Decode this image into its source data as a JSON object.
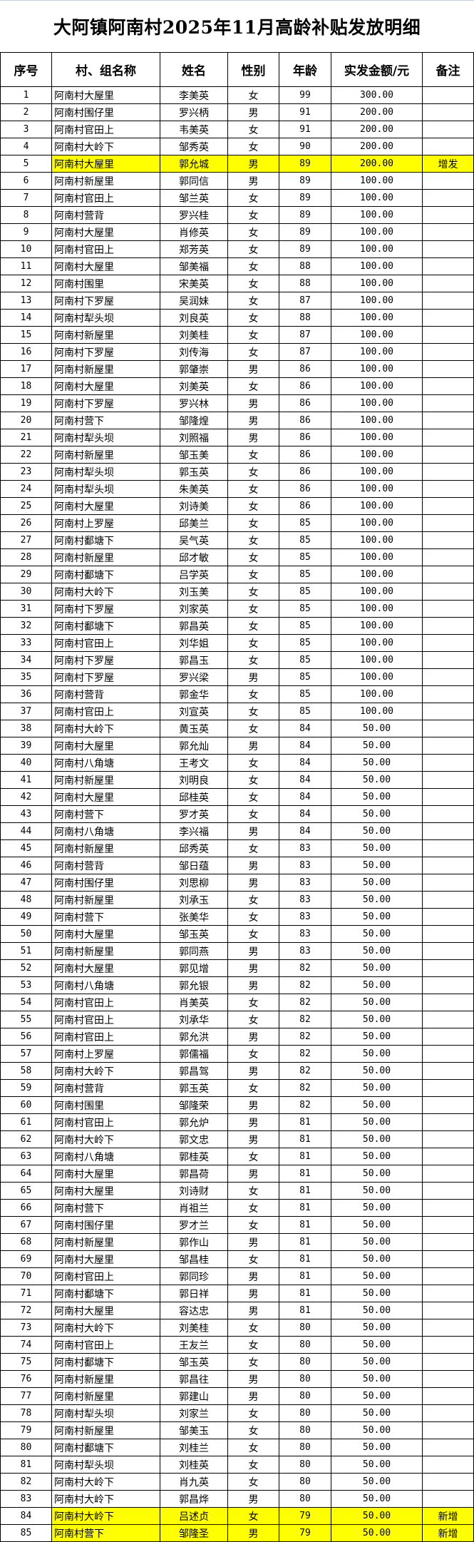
{
  "title": "大阿镇阿南村2025年11月高龄补贴发放明细",
  "highlight_color": "#ffff00",
  "columns": [
    "序号",
    "村、组名称",
    "姓名",
    "性别",
    "年龄",
    "实发金额/元",
    "备注"
  ],
  "rows": [
    [
      "1",
      "阿南村大屋里",
      "李美英",
      "女",
      "99",
      "300.00",
      ""
    ],
    [
      "2",
      "阿南村围仔里",
      "罗兴柄",
      "男",
      "91",
      "200.00",
      ""
    ],
    [
      "3",
      "阿南村官田上",
      "韦美英",
      "女",
      "91",
      "200.00",
      ""
    ],
    [
      "4",
      "阿南村大岭下",
      "邹秀英",
      "女",
      "90",
      "200.00",
      ""
    ],
    [
      "5",
      "阿南村大屋里",
      "郭允城",
      "男",
      "89",
      "200.00",
      "增发"
    ],
    [
      "6",
      "阿南村新屋里",
      "郭同信",
      "男",
      "89",
      "100.00",
      ""
    ],
    [
      "7",
      "阿南村官田上",
      "邹兰英",
      "女",
      "89",
      "100.00",
      ""
    ],
    [
      "8",
      "阿南村营背",
      "罗兴桂",
      "女",
      "89",
      "100.00",
      ""
    ],
    [
      "9",
      "阿南村大屋里",
      "肖修英",
      "女",
      "89",
      "100.00",
      ""
    ],
    [
      "10",
      "阿南村官田上",
      "郑芳英",
      "女",
      "89",
      "100.00",
      ""
    ],
    [
      "11",
      "阿南村大屋里",
      "邹美福",
      "女",
      "88",
      "100.00",
      ""
    ],
    [
      "12",
      "阿南村围里",
      "宋美英",
      "女",
      "88",
      "100.00",
      ""
    ],
    [
      "13",
      "阿南村下罗屋",
      "吴润妹",
      "女",
      "87",
      "100.00",
      ""
    ],
    [
      "14",
      "阿南村犁头坝",
      "刘良英",
      "女",
      "88",
      "100.00",
      ""
    ],
    [
      "15",
      "阿南村新屋里",
      "刘美桂",
      "女",
      "87",
      "100.00",
      ""
    ],
    [
      "16",
      "阿南村下罗屋",
      "刘传海",
      "女",
      "87",
      "100.00",
      ""
    ],
    [
      "17",
      "阿南村新屋里",
      "郭肇崇",
      "男",
      "86",
      "100.00",
      ""
    ],
    [
      "18",
      "阿南村大屋里",
      "刘美英",
      "女",
      "86",
      "100.00",
      ""
    ],
    [
      "19",
      "阿南村下罗屋",
      "罗兴林",
      "男",
      "86",
      "100.00",
      ""
    ],
    [
      "20",
      "阿南村营下",
      "邹隆煌",
      "男",
      "86",
      "100.00",
      ""
    ],
    [
      "21",
      "阿南村犁头坝",
      "刘照福",
      "男",
      "86",
      "100.00",
      ""
    ],
    [
      "22",
      "阿南村新屋里",
      "邹玉美",
      "女",
      "86",
      "100.00",
      ""
    ],
    [
      "23",
      "阿南村犁头坝",
      "郭玉英",
      "女",
      "86",
      "100.00",
      ""
    ],
    [
      "24",
      "阿南村犁头坝",
      "朱美英",
      "女",
      "86",
      "100.00",
      ""
    ],
    [
      "25",
      "阿南村大屋里",
      "刘诗美",
      "女",
      "86",
      "100.00",
      ""
    ],
    [
      "26",
      "阿南村上罗屋",
      "邱美兰",
      "女",
      "85",
      "100.00",
      ""
    ],
    [
      "27",
      "阿南村鄱塘下",
      "吴气英",
      "女",
      "85",
      "100.00",
      ""
    ],
    [
      "28",
      "阿南村新屋里",
      "邱才敏",
      "女",
      "85",
      "100.00",
      ""
    ],
    [
      "29",
      "阿南村鄱塘下",
      "吕学英",
      "女",
      "85",
      "100.00",
      ""
    ],
    [
      "30",
      "阿南村大岭下",
      "刘玉美",
      "女",
      "85",
      "100.00",
      ""
    ],
    [
      "31",
      "阿南村下罗屋",
      "刘家英",
      "女",
      "85",
      "100.00",
      ""
    ],
    [
      "32",
      "阿南村鄱塘下",
      "郭昌英",
      "女",
      "85",
      "100.00",
      ""
    ],
    [
      "33",
      "阿南村官田上",
      "刘华姐",
      "女",
      "85",
      "100.00",
      ""
    ],
    [
      "34",
      "阿南村下罗屋",
      "郭昌玉",
      "女",
      "85",
      "100.00",
      ""
    ],
    [
      "35",
      "阿南村下罗屋",
      "罗兴梁",
      "男",
      "85",
      "100.00",
      ""
    ],
    [
      "36",
      "阿南村营背",
      "郭金华",
      "女",
      "85",
      "100.00",
      ""
    ],
    [
      "37",
      "阿南村官田上",
      "刘宣英",
      "女",
      "85",
      "100.00",
      ""
    ],
    [
      "38",
      "阿南村大岭下",
      "黄玉英",
      "女",
      "84",
      "50.00",
      ""
    ],
    [
      "39",
      "阿南村大屋里",
      "郭允灿",
      "男",
      "84",
      "50.00",
      ""
    ],
    [
      "40",
      "阿南村八角塘",
      "王考文",
      "女",
      "84",
      "50.00",
      ""
    ],
    [
      "41",
      "阿南村新屋里",
      "刘明良",
      "女",
      "84",
      "50.00",
      ""
    ],
    [
      "42",
      "阿南村大屋里",
      "邱桂英",
      "女",
      "84",
      "50.00",
      ""
    ],
    [
      "43",
      "阿南村营下",
      "罗才英",
      "女",
      "84",
      "50.00",
      ""
    ],
    [
      "44",
      "阿南村八角塘",
      "李兴福",
      "男",
      "84",
      "50.00",
      ""
    ],
    [
      "45",
      "阿南村新屋里",
      "邱秀英",
      "女",
      "83",
      "50.00",
      ""
    ],
    [
      "46",
      "阿南村营背",
      "邹日蕴",
      "男",
      "83",
      "50.00",
      ""
    ],
    [
      "47",
      "阿南村围仔里",
      "刘思柳",
      "男",
      "83",
      "50.00",
      ""
    ],
    [
      "48",
      "阿南村新屋里",
      "刘承玉",
      "女",
      "83",
      "50.00",
      ""
    ],
    [
      "49",
      "阿南村营下",
      "张美华",
      "女",
      "83",
      "50.00",
      ""
    ],
    [
      "50",
      "阿南村大屋里",
      "邹玉英",
      "女",
      "83",
      "50.00",
      ""
    ],
    [
      "51",
      "阿南村新屋里",
      "郭同燕",
      "男",
      "83",
      "50.00",
      ""
    ],
    [
      "52",
      "阿南村大屋里",
      "郭见增",
      "男",
      "82",
      "50.00",
      ""
    ],
    [
      "53",
      "阿南村八角塘",
      "郭允银",
      "男",
      "82",
      "50.00",
      ""
    ],
    [
      "54",
      "阿南村官田上",
      "肖美英",
      "女",
      "82",
      "50.00",
      ""
    ],
    [
      "55",
      "阿南村官田上",
      "刘承华",
      "女",
      "82",
      "50.00",
      ""
    ],
    [
      "56",
      "阿南村官田上",
      "郭允洪",
      "男",
      "82",
      "50.00",
      ""
    ],
    [
      "57",
      "阿南村上罗屋",
      "郭儒福",
      "女",
      "82",
      "50.00",
      ""
    ],
    [
      "58",
      "阿南村大岭下",
      "郭昌驾",
      "男",
      "82",
      "50.00",
      ""
    ],
    [
      "59",
      "阿南村营背",
      "郭玉英",
      "女",
      "82",
      "50.00",
      ""
    ],
    [
      "60",
      "阿南村围里",
      "邹隆荣",
      "男",
      "82",
      "50.00",
      ""
    ],
    [
      "61",
      "阿南村官田上",
      "郭允炉",
      "男",
      "81",
      "50.00",
      ""
    ],
    [
      "62",
      "阿南村大岭下",
      "郭文忠",
      "男",
      "81",
      "50.00",
      ""
    ],
    [
      "63",
      "阿南村八角塘",
      "郭桂英",
      "女",
      "81",
      "50.00",
      ""
    ],
    [
      "64",
      "阿南村大屋里",
      "郭昌荷",
      "男",
      "81",
      "50.00",
      ""
    ],
    [
      "65",
      "阿南村大屋里",
      "刘诗财",
      "女",
      "81",
      "50.00",
      ""
    ],
    [
      "66",
      "阿南村营下",
      "肖祖兰",
      "女",
      "81",
      "50.00",
      ""
    ],
    [
      "67",
      "阿南村围仔里",
      "罗才兰",
      "女",
      "81",
      "50.00",
      ""
    ],
    [
      "68",
      "阿南村新屋里",
      "郭作山",
      "男",
      "81",
      "50.00",
      ""
    ],
    [
      "69",
      "阿南村大屋里",
      "邹昌桂",
      "女",
      "81",
      "50.00",
      ""
    ],
    [
      "70",
      "阿南村官田上",
      "郭同珍",
      "男",
      "81",
      "50.00",
      ""
    ],
    [
      "71",
      "阿南村鄱塘下",
      "郭日祥",
      "男",
      "81",
      "50.00",
      ""
    ],
    [
      "72",
      "阿南村大屋里",
      "容达忠",
      "男",
      "81",
      "50.00",
      ""
    ],
    [
      "73",
      "阿南村大岭下",
      "刘美桂",
      "女",
      "80",
      "50.00",
      ""
    ],
    [
      "74",
      "阿南村官田上",
      "王友兰",
      "女",
      "80",
      "50.00",
      ""
    ],
    [
      "75",
      "阿南村鄱塘下",
      "邹玉英",
      "女",
      "80",
      "50.00",
      ""
    ],
    [
      "76",
      "阿南村新屋里",
      "郭昌往",
      "男",
      "80",
      "50.00",
      ""
    ],
    [
      "77",
      "阿南村新屋里",
      "郭建山",
      "男",
      "80",
      "50.00",
      ""
    ],
    [
      "78",
      "阿南村犁头坝",
      "刘家兰",
      "女",
      "80",
      "50.00",
      ""
    ],
    [
      "79",
      "阿南村新屋里",
      "邹美玉",
      "女",
      "80",
      "50.00",
      ""
    ],
    [
      "80",
      "阿南村鄱塘下",
      "刘桂兰",
      "女",
      "80",
      "50.00",
      ""
    ],
    [
      "81",
      "阿南村犁头坝",
      "刘桂英",
      "女",
      "80",
      "50.00",
      ""
    ],
    [
      "82",
      "阿南村大岭下",
      "肖九英",
      "女",
      "80",
      "50.00",
      ""
    ],
    [
      "83",
      "阿南村大岭下",
      "郭昌烨",
      "男",
      "80",
      "50.00",
      ""
    ],
    [
      "84",
      "阿南村大岭下",
      "吕述贞",
      "女",
      "79",
      "50.00",
      "新增"
    ],
    [
      "85",
      "阿南村营下",
      "邹隆圣",
      "男",
      "79",
      "50.00",
      "新增"
    ]
  ],
  "highlighted_rows": [
    "5",
    "84",
    "85"
  ]
}
